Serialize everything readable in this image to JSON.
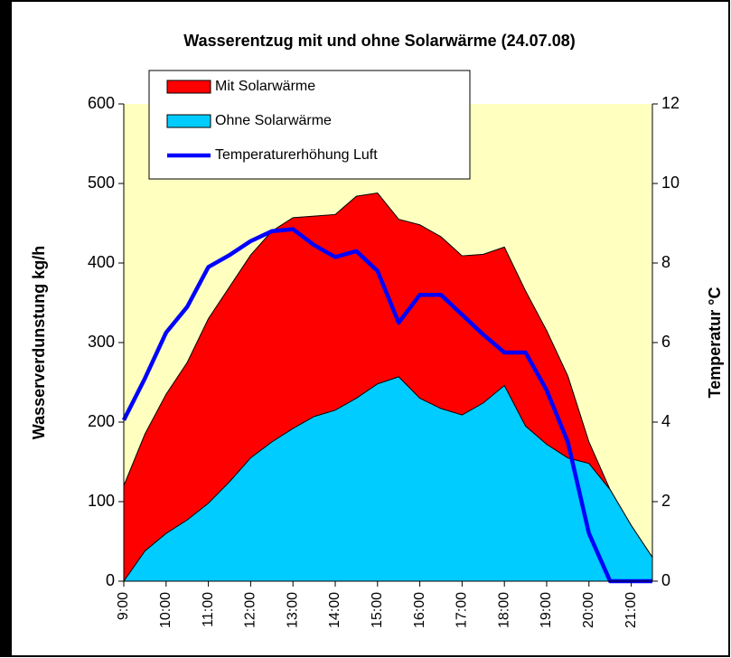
{
  "chart_data": {
    "type": "area",
    "title": "Wasserentzug mit und ohne Solarwärme (24.07.08)",
    "y_label": "Wasserverdunstung kg/h",
    "y2_label": "Temperatur °C",
    "categories": [
      "9:00",
      null,
      "10:00",
      null,
      "11:00",
      null,
      "12:00",
      null,
      "13:00",
      null,
      "14:00",
      null,
      "15:00",
      null,
      "16:00",
      null,
      "17:00",
      null,
      "18:00",
      null,
      "19:00",
      null,
      "20:00",
      null,
      "21:00",
      null
    ],
    "series": [
      {
        "name": "Mit Solarwärme",
        "color": "#ff0000",
        "kind": "area",
        "values": [
          120,
          185,
          235,
          275,
          330,
          370,
          410,
          440,
          457,
          459,
          461,
          484,
          488,
          455,
          448,
          433,
          409,
          411,
          420,
          365,
          315,
          258,
          175,
          115,
          70,
          30
        ]
      },
      {
        "name": "Ohne Solarwärme",
        "color": "#00ccff",
        "kind": "area",
        "values": [
          0,
          38,
          60,
          77,
          98,
          125,
          155,
          175,
          192,
          207,
          215,
          230,
          248,
          257,
          230,
          217,
          209,
          224,
          246,
          195,
          172,
          155,
          148,
          115,
          70,
          30
        ]
      },
      {
        "name": "Temperaturerhöhung Luft",
        "color": "#0000ff",
        "kind": "line",
        "axis": "y2",
        "values": [
          4.05,
          5.1,
          6.25,
          6.9,
          7.9,
          8.2,
          8.55,
          8.8,
          8.85,
          8.45,
          8.15,
          8.3,
          7.8,
          6.5,
          7.2,
          7.2,
          6.7,
          6.2,
          5.75,
          5.75,
          4.8,
          3.5,
          1.2,
          0,
          0,
          0
        ]
      }
    ],
    "ylim": [
      0,
      600
    ],
    "yticks": [
      0,
      100,
      200,
      300,
      400,
      500,
      600
    ],
    "y2lim": [
      0,
      12
    ],
    "y2ticks": [
      0,
      2,
      4,
      6,
      8,
      10,
      12
    ],
    "plot_background": "#ffffc0"
  }
}
